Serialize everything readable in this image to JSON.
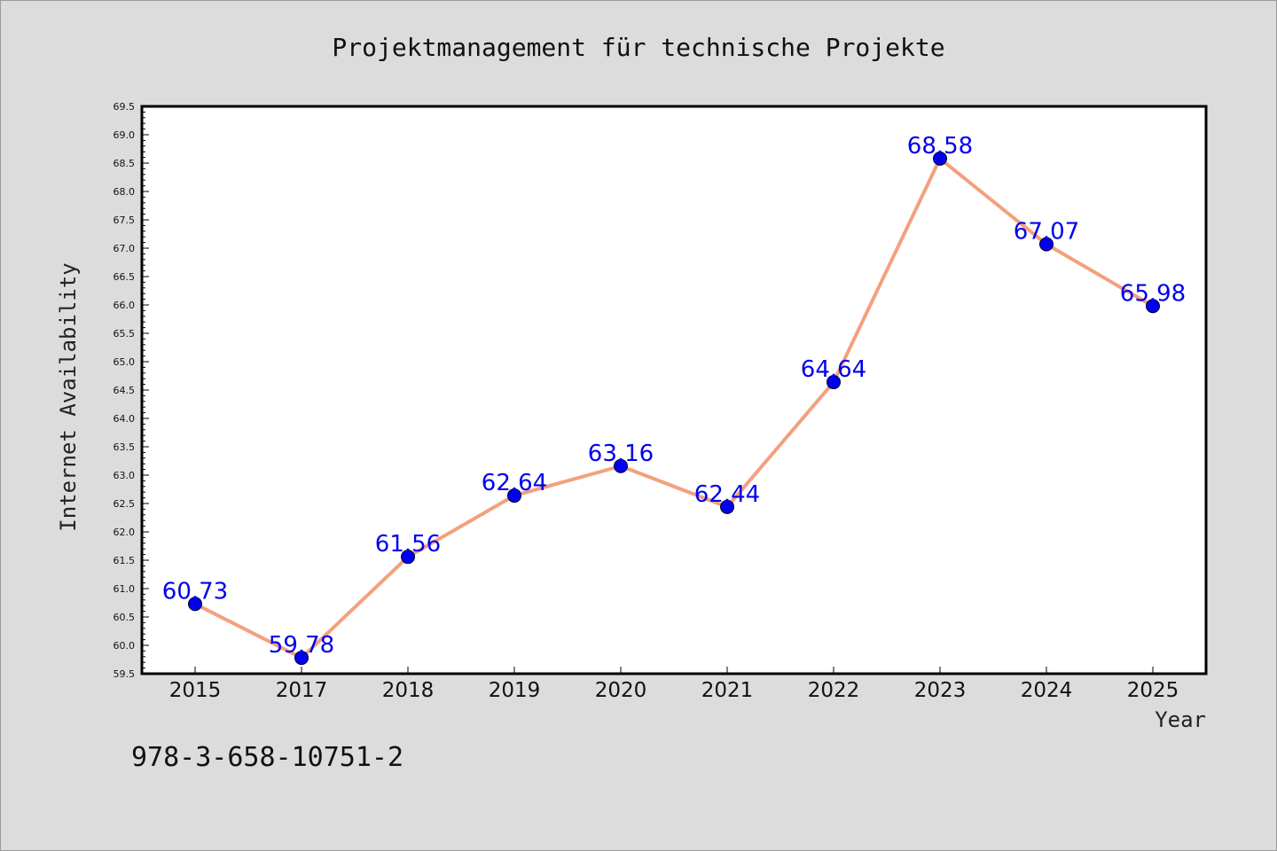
{
  "chart_data": {
    "type": "line",
    "title": "Projektmanagement für technische Projekte",
    "xlabel": "Year",
    "ylabel": "Internet Availability",
    "categories": [
      "2015",
      "2017",
      "2018",
      "2019",
      "2020",
      "2021",
      "2022",
      "2023",
      "2024",
      "2025"
    ],
    "values": [
      60.73,
      59.78,
      61.56,
      62.64,
      63.16,
      62.44,
      64.64,
      68.58,
      67.07,
      65.98
    ],
    "data_labels": [
      "60.73",
      "59.78",
      "61.56",
      "62.64",
      "63.16",
      "62.44",
      "64.64",
      "68.58",
      "67.07",
      "65.98"
    ],
    "ylim": [
      59.5,
      69.5
    ],
    "y_ticks": [
      "59.5",
      "60.0",
      "60.5",
      "61.0",
      "61.5",
      "62.0",
      "62.5",
      "63.0",
      "63.5",
      "64.0",
      "64.5",
      "65.0",
      "65.5",
      "66.0",
      "66.5",
      "67.0",
      "67.5",
      "68.0",
      "68.5",
      "69.0",
      "69.5"
    ],
    "grid": false,
    "legend": "none",
    "line_color": "#f4a07e",
    "marker_color": "#0000ee",
    "label_color": "#0000ee"
  },
  "footer": {
    "isbn": "978-3-658-10751-2"
  }
}
